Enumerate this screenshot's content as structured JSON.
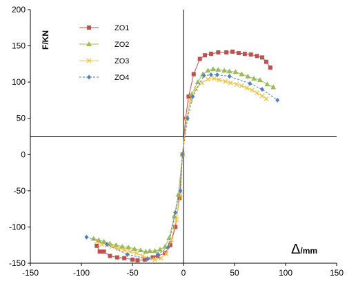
{
  "chart_data": {
    "type": "scatter",
    "title": "",
    "xlabel": "Δ/mm",
    "ylabel": "F/KN",
    "xlim": [
      -150,
      150
    ],
    "ylim": [
      -150,
      200
    ],
    "x_ticks": [
      "-150",
      "-100",
      "-50",
      "0",
      "50",
      "100",
      "150"
    ],
    "y_ticks": [
      "-150",
      "-100",
      "-50",
      "0",
      "50",
      "100",
      "150",
      "200"
    ],
    "grid": false,
    "legend_position": "top-left",
    "series": [
      {
        "name": "ZO1",
        "color": "#c0504d",
        "marker": "square",
        "line": "solid",
        "points": [
          [
            -85,
            -126
          ],
          [
            -82,
            -134
          ],
          [
            -78,
            -134
          ],
          [
            -72,
            -140
          ],
          [
            -65,
            -142
          ],
          [
            -58,
            -143
          ],
          [
            -50,
            -145
          ],
          [
            -45,
            -146
          ],
          [
            -38,
            -145
          ],
          [
            -30,
            -142
          ],
          [
            -25,
            -140
          ],
          [
            -18,
            -136
          ],
          [
            -13,
            -125
          ],
          [
            -8,
            -100
          ],
          [
            -4,
            -60
          ],
          [
            -1,
            0
          ],
          [
            2,
            50
          ],
          [
            5,
            80
          ],
          [
            10,
            111
          ],
          [
            16,
            132
          ],
          [
            21,
            137
          ],
          [
            27,
            139
          ],
          [
            34,
            141
          ],
          [
            42,
            141
          ],
          [
            48,
            142
          ],
          [
            54,
            140
          ],
          [
            60,
            139
          ],
          [
            66,
            138
          ],
          [
            72,
            136
          ],
          [
            77,
            134
          ],
          [
            81,
            128
          ],
          [
            85,
            120
          ]
        ]
      },
      {
        "name": "ZO2",
        "color": "#9bbb59",
        "marker": "triangle",
        "line": "solid",
        "points": [
          [
            -88,
            -116
          ],
          [
            -83,
            -118
          ],
          [
            -78,
            -120
          ],
          [
            -72,
            -123
          ],
          [
            -66,
            -125
          ],
          [
            -60,
            -127
          ],
          [
            -54,
            -128
          ],
          [
            -48,
            -130
          ],
          [
            -42,
            -132
          ],
          [
            -37,
            -134
          ],
          [
            -33,
            -133
          ],
          [
            -28,
            -133
          ],
          [
            -23,
            -131
          ],
          [
            -18,
            -127
          ],
          [
            -14,
            -115
          ],
          [
            -9,
            -85
          ],
          [
            -5,
            -55
          ],
          [
            -1,
            0
          ],
          [
            3,
            50
          ],
          [
            8,
            83
          ],
          [
            14,
            100
          ],
          [
            19,
            111
          ],
          [
            24,
            116
          ],
          [
            29,
            118
          ],
          [
            34,
            117
          ],
          [
            40,
            116
          ],
          [
            45,
            115
          ],
          [
            51,
            114
          ],
          [
            57,
            111
          ],
          [
            63,
            108
          ],
          [
            69,
            105
          ],
          [
            75,
            103
          ],
          [
            82,
            97
          ],
          [
            88,
            93
          ]
        ]
      },
      {
        "name": "ZO3",
        "color": "#f5c342",
        "marker": "x",
        "line": "solid",
        "points": [
          [
            -85,
            -120
          ],
          [
            -80,
            -124
          ],
          [
            -75,
            -125
          ],
          [
            -70,
            -127
          ],
          [
            -64,
            -130
          ],
          [
            -58,
            -132
          ],
          [
            -52,
            -134
          ],
          [
            -46,
            -136
          ],
          [
            -40,
            -140
          ],
          [
            -34,
            -143
          ],
          [
            -28,
            -145
          ],
          [
            -22,
            -143
          ],
          [
            -17,
            -137
          ],
          [
            -12,
            -118
          ],
          [
            -7,
            -90
          ],
          [
            -3,
            -55
          ],
          [
            -1,
            0
          ],
          [
            3,
            50
          ],
          [
            7,
            75
          ],
          [
            12,
            91
          ],
          [
            18,
            99
          ],
          [
            24,
            104
          ],
          [
            30,
            105
          ],
          [
            35,
            103
          ],
          [
            41,
            101
          ],
          [
            46,
            99
          ],
          [
            52,
            97
          ],
          [
            57,
            95
          ],
          [
            62,
            92
          ],
          [
            67,
            89
          ],
          [
            72,
            85
          ],
          [
            77,
            81
          ],
          [
            81,
            77
          ]
        ]
      },
      {
        "name": "ZO4",
        "color": "#4f81bd",
        "marker": "diamond",
        "line": "dashed",
        "points": [
          [
            -95,
            -114
          ],
          [
            -75,
            -124
          ],
          [
            -55,
            -138
          ],
          [
            -35,
            -144
          ],
          [
            -25,
            -138
          ],
          [
            -15,
            -128
          ],
          [
            -8,
            -80
          ],
          [
            -3,
            -50
          ],
          [
            -1,
            0
          ],
          [
            4,
            50
          ],
          [
            9,
            80
          ],
          [
            20,
            109
          ],
          [
            27,
            110
          ],
          [
            33,
            110
          ],
          [
            45,
            108
          ],
          [
            65,
            98
          ],
          [
            77,
            90
          ],
          [
            92,
            75
          ]
        ]
      }
    ]
  }
}
